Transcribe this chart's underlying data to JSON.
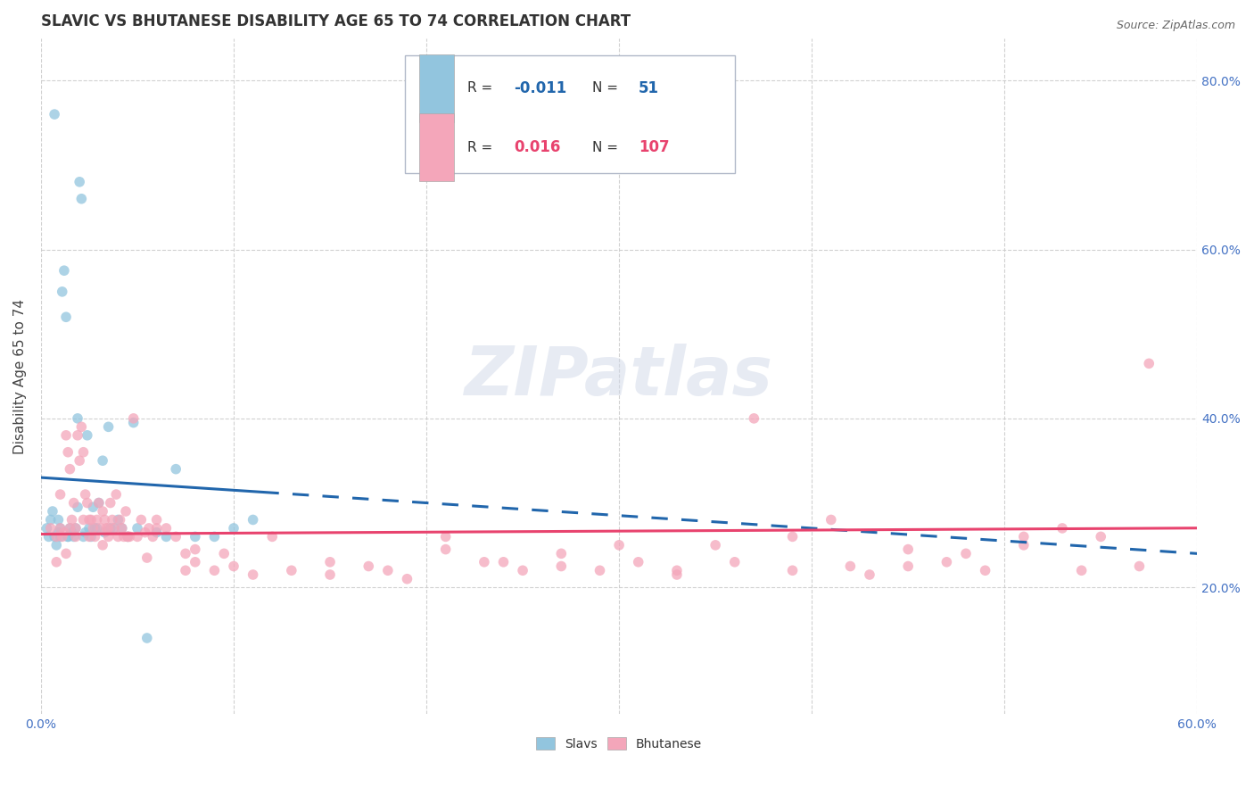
{
  "title": "SLAVIC VS BHUTANESE DISABILITY AGE 65 TO 74 CORRELATION CHART",
  "source": "Source: ZipAtlas.com",
  "ylabel": "Disability Age 65 to 74",
  "xlim": [
    0.0,
    0.6
  ],
  "ylim": [
    0.05,
    0.85
  ],
  "xtick_vals": [
    0.0,
    0.1,
    0.2,
    0.3,
    0.4,
    0.5,
    0.6
  ],
  "xticklabels": [
    "0.0%",
    "",
    "",
    "",
    "",
    "",
    "60.0%"
  ],
  "ytick_vals": [
    0.2,
    0.4,
    0.6,
    0.8
  ],
  "yticklabels": [
    "20.0%",
    "40.0%",
    "60.0%",
    "80.0%"
  ],
  "slavs_color": "#92c5de",
  "bhutanese_color": "#f4a6ba",
  "trendline_slavs_color": "#2166ac",
  "trendline_bhutanese_color": "#e8436e",
  "watermark": "ZIPatlas",
  "slavs_x": [
    0.003,
    0.004,
    0.005,
    0.006,
    0.007,
    0.008,
    0.009,
    0.01,
    0.01,
    0.011,
    0.012,
    0.013,
    0.014,
    0.015,
    0.016,
    0.017,
    0.018,
    0.019,
    0.02,
    0.021,
    0.022,
    0.023,
    0.024,
    0.025,
    0.026,
    0.027,
    0.028,
    0.029,
    0.03,
    0.032,
    0.033,
    0.035,
    0.036,
    0.038,
    0.04,
    0.042,
    0.045,
    0.048,
    0.05,
    0.055,
    0.06,
    0.065,
    0.07,
    0.08,
    0.09,
    0.1,
    0.11,
    0.019,
    0.014,
    0.009,
    0.007
  ],
  "slavs_y": [
    0.27,
    0.26,
    0.28,
    0.29,
    0.26,
    0.25,
    0.28,
    0.26,
    0.27,
    0.55,
    0.575,
    0.52,
    0.26,
    0.27,
    0.265,
    0.26,
    0.27,
    0.295,
    0.68,
    0.66,
    0.26,
    0.265,
    0.38,
    0.27,
    0.26,
    0.295,
    0.27,
    0.27,
    0.3,
    0.35,
    0.265,
    0.39,
    0.27,
    0.27,
    0.28,
    0.27,
    0.26,
    0.395,
    0.27,
    0.14,
    0.265,
    0.26,
    0.34,
    0.26,
    0.26,
    0.27,
    0.28,
    0.4,
    0.26,
    0.265,
    0.76
  ],
  "bhutanese_x": [
    0.005,
    0.008,
    0.01,
    0.011,
    0.012,
    0.013,
    0.014,
    0.015,
    0.016,
    0.017,
    0.018,
    0.019,
    0.02,
    0.021,
    0.022,
    0.023,
    0.024,
    0.025,
    0.026,
    0.027,
    0.028,
    0.029,
    0.03,
    0.031,
    0.032,
    0.033,
    0.034,
    0.035,
    0.036,
    0.037,
    0.038,
    0.039,
    0.04,
    0.041,
    0.042,
    0.043,
    0.044,
    0.045,
    0.046,
    0.048,
    0.05,
    0.052,
    0.054,
    0.056,
    0.058,
    0.06,
    0.065,
    0.07,
    0.075,
    0.08,
    0.09,
    0.1,
    0.11,
    0.13,
    0.15,
    0.17,
    0.19,
    0.21,
    0.23,
    0.25,
    0.27,
    0.29,
    0.31,
    0.33,
    0.35,
    0.37,
    0.39,
    0.41,
    0.43,
    0.45,
    0.47,
    0.49,
    0.51,
    0.53,
    0.55,
    0.57,
    0.54,
    0.51,
    0.48,
    0.45,
    0.42,
    0.39,
    0.36,
    0.33,
    0.3,
    0.27,
    0.24,
    0.21,
    0.18,
    0.15,
    0.12,
    0.095,
    0.075,
    0.055,
    0.035,
    0.025,
    0.018,
    0.013,
    0.008,
    0.01,
    0.015,
    0.022,
    0.032,
    0.045,
    0.06,
    0.08,
    0.575
  ],
  "bhutanese_y": [
    0.27,
    0.26,
    0.27,
    0.26,
    0.265,
    0.38,
    0.36,
    0.34,
    0.28,
    0.3,
    0.27,
    0.38,
    0.35,
    0.39,
    0.36,
    0.31,
    0.3,
    0.26,
    0.28,
    0.27,
    0.26,
    0.28,
    0.3,
    0.27,
    0.29,
    0.28,
    0.27,
    0.26,
    0.3,
    0.28,
    0.27,
    0.31,
    0.26,
    0.28,
    0.27,
    0.26,
    0.29,
    0.26,
    0.26,
    0.4,
    0.26,
    0.28,
    0.265,
    0.27,
    0.26,
    0.28,
    0.27,
    0.26,
    0.24,
    0.23,
    0.22,
    0.225,
    0.215,
    0.22,
    0.215,
    0.225,
    0.21,
    0.26,
    0.23,
    0.22,
    0.225,
    0.22,
    0.23,
    0.215,
    0.25,
    0.4,
    0.22,
    0.28,
    0.215,
    0.225,
    0.23,
    0.22,
    0.25,
    0.27,
    0.26,
    0.225,
    0.22,
    0.26,
    0.24,
    0.245,
    0.225,
    0.26,
    0.23,
    0.22,
    0.25,
    0.24,
    0.23,
    0.245,
    0.22,
    0.23,
    0.26,
    0.24,
    0.22,
    0.235,
    0.27,
    0.28,
    0.26,
    0.24,
    0.23,
    0.31,
    0.27,
    0.28,
    0.25,
    0.26,
    0.27,
    0.245,
    0.465
  ]
}
